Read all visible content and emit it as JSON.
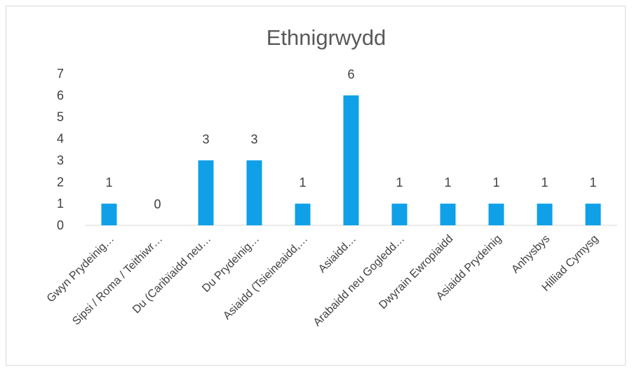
{
  "chart_data": {
    "type": "bar",
    "title": "Ethnigrwydd",
    "xlabel": "",
    "ylabel": "",
    "categories": [
      "Gwyn Prydeinig…",
      "Sipsi / Roma / Teithiwr…",
      "Du (Caribïaidd neu…",
      "Du Prydeinig…",
      "Asiaidd (Tsieineaidd,…",
      "Asiaidd…",
      "Arabaidd neu Gogledd…",
      "Dwyrain Ewropiaidd",
      "Asiaidd Prydeinig",
      "Anhysbys",
      "Hilliad Cymysg"
    ],
    "values": [
      1,
      0,
      3,
      3,
      1,
      6,
      1,
      1,
      1,
      1,
      1
    ],
    "ylim": [
      0,
      7
    ],
    "yticks": [
      "0",
      "1",
      "2",
      "3",
      "4",
      "5",
      "6",
      "7"
    ],
    "grid": false,
    "legend": "none",
    "colors": {
      "bar": "#0fa0e8",
      "axis": "#d9d9d9",
      "text": "#404040",
      "title": "#595959"
    }
  }
}
